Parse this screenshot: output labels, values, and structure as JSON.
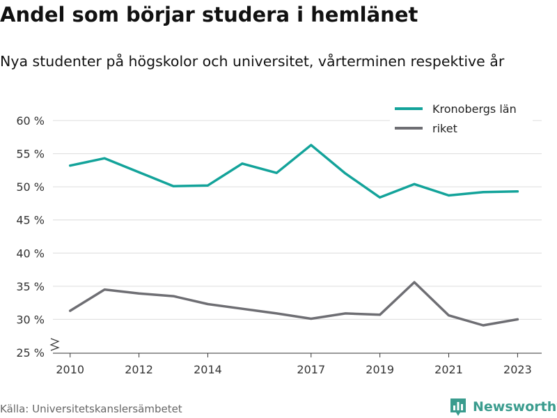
{
  "title": "Andel som börjar studera i hemlänet",
  "subtitle": "Nya studenter på högskolor och universitet, vårterminen respektive år",
  "source": "Källa: Universitetskanslersämbetet",
  "brand": {
    "name": "Newsworthy",
    "icon": "bar-chart-logo-icon",
    "color": "#3a9c8e"
  },
  "chart_data": {
    "type": "line",
    "xlim": [
      2009.5,
      2023.7
    ],
    "ylim": [
      25,
      60
    ],
    "x_ticks": [
      2010,
      2012,
      2014,
      2017,
      2019,
      2021,
      2023
    ],
    "y_ticks": [
      25,
      30,
      35,
      40,
      45,
      50,
      55,
      60
    ],
    "y_tick_labels": [
      "25 %",
      "30 %",
      "35 %",
      "40 %",
      "45 %",
      "50 %",
      "55 %",
      "60 %"
    ],
    "grid": "horizontal",
    "axis_break": true,
    "legend_position": "top-right",
    "x": [
      2010,
      2011,
      2012,
      2013,
      2014,
      2015,
      2016,
      2017,
      2018,
      2019,
      2020,
      2021,
      2022,
      2023
    ],
    "series": [
      {
        "name": "Kronobergs län",
        "color": "#13a39a",
        "values": [
          53.2,
          54.3,
          52.2,
          50.1,
          50.2,
          53.5,
          52.1,
          56.3,
          52.0,
          48.4,
          50.4,
          48.7,
          49.2,
          49.3
        ]
      },
      {
        "name": "riket",
        "color": "#6e6e73",
        "values": [
          31.3,
          34.5,
          33.9,
          33.5,
          32.3,
          31.6,
          30.9,
          30.1,
          30.9,
          30.7,
          35.6,
          30.6,
          29.1,
          30.0
        ]
      }
    ]
  }
}
